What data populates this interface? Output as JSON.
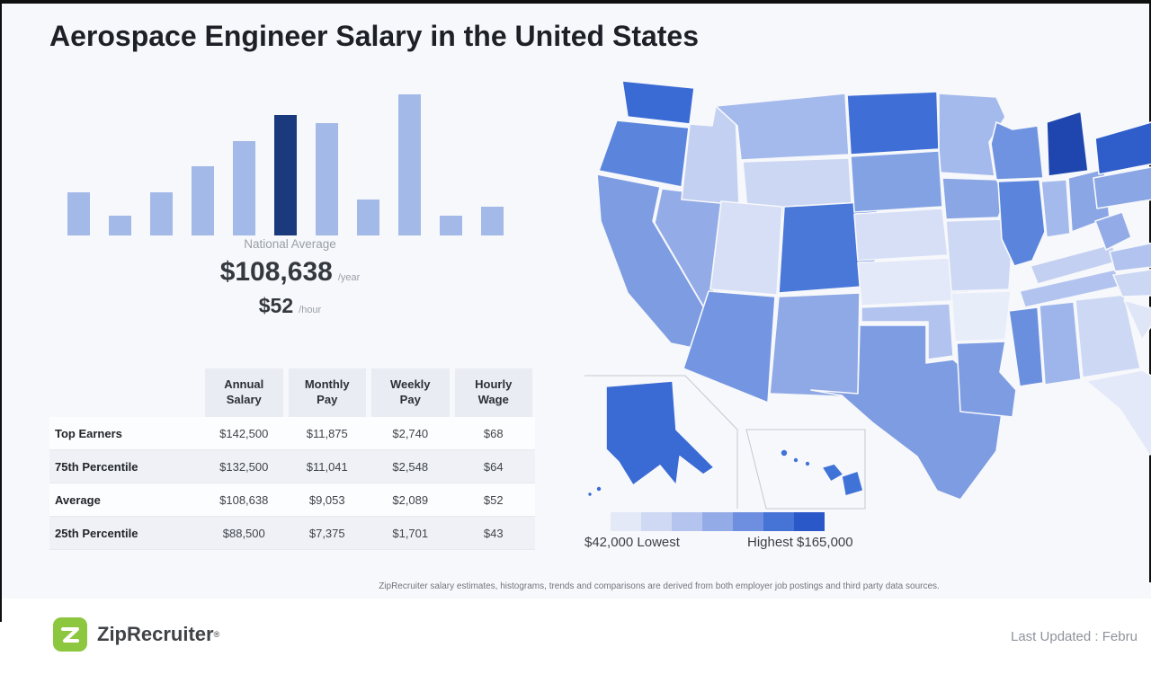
{
  "title": "Aerospace Engineer Salary in the United States",
  "national_average": {
    "label": "National Average",
    "annual_value": "$108,638",
    "annual_unit": "/year",
    "hourly_value": "$52",
    "hourly_unit": "/hour"
  },
  "salary_table": {
    "column_headers": [
      "Annual Salary",
      "Monthly Pay",
      "Weekly Pay",
      "Hourly Wage"
    ],
    "rows": [
      {
        "label": "Top Earners",
        "values": [
          "$142,500",
          "$11,875",
          "$2,740",
          "$68"
        ]
      },
      {
        "label": "75th Percentile",
        "values": [
          "$132,500",
          "$11,041",
          "$2,548",
          "$64"
        ]
      },
      {
        "label": "Average",
        "values": [
          "$108,638",
          "$9,053",
          "$2,089",
          "$52"
        ]
      },
      {
        "label": "25th Percentile",
        "values": [
          "$88,500",
          "$7,375",
          "$1,701",
          "$43"
        ]
      }
    ]
  },
  "map": {
    "legend": {
      "lowest_label": "$42,000 Lowest",
      "highest_label": "Highest $165,000",
      "colors": [
        "#e3e9f7",
        "#cfd9f3",
        "#b4c4ee",
        "#93abe7",
        "#6e8fdf",
        "#4673d6",
        "#2a58c8"
      ]
    },
    "states": [
      {
        "id": "WA",
        "color": "#3a6ad4"
      },
      {
        "id": "OR",
        "color": "#5b85dd"
      },
      {
        "id": "CA",
        "color": "#7d9ce2"
      },
      {
        "id": "NV",
        "color": "#93ace7"
      },
      {
        "id": "ID",
        "color": "#c3d0f1"
      },
      {
        "id": "MT",
        "color": "#a4b9ec"
      },
      {
        "id": "WY",
        "color": "#ccd7f3"
      },
      {
        "id": "UT",
        "color": "#d7dff6"
      },
      {
        "id": "CO",
        "color": "#4a78d8"
      },
      {
        "id": "AZ",
        "color": "#7495e1"
      },
      {
        "id": "NM",
        "color": "#8fa9e6"
      },
      {
        "id": "ND",
        "color": "#3f6ed6"
      },
      {
        "id": "SD",
        "color": "#82a2e4"
      },
      {
        "id": "NE",
        "color": "#d7dff6"
      },
      {
        "id": "KS",
        "color": "#e3e9f8"
      },
      {
        "id": "OK",
        "color": "#b1c3ee"
      },
      {
        "id": "TX",
        "color": "#7d9ce2"
      },
      {
        "id": "MN",
        "color": "#a4b9ec"
      },
      {
        "id": "IA",
        "color": "#8aa6e5"
      },
      {
        "id": "MO",
        "color": "#cdd8f4"
      },
      {
        "id": "AR",
        "color": "#e8edfa"
      },
      {
        "id": "LA",
        "color": "#7d9ce2"
      },
      {
        "id": "WI",
        "color": "#6f93e0"
      },
      {
        "id": "IL",
        "color": "#5b85dd"
      },
      {
        "id": "MI",
        "color": "#1e46ae"
      },
      {
        "id": "IN",
        "color": "#a4b9ec"
      },
      {
        "id": "OH",
        "color": "#8aa6e5"
      },
      {
        "id": "KY",
        "color": "#c3d0f1"
      },
      {
        "id": "TN",
        "color": "#b1c3ee"
      },
      {
        "id": "MS",
        "color": "#6a8fdf"
      },
      {
        "id": "AL",
        "color": "#9db5ea"
      },
      {
        "id": "GA",
        "color": "#cdd8f4"
      },
      {
        "id": "FL",
        "color": "#e3e9f8"
      },
      {
        "id": "WV",
        "color": "#93ace7"
      },
      {
        "id": "VA",
        "color": "#b1c3ee"
      },
      {
        "id": "NC",
        "color": "#ccd7f3"
      },
      {
        "id": "SC",
        "color": "#dfe6f8"
      },
      {
        "id": "PA",
        "color": "#8aa6e5"
      },
      {
        "id": "NY",
        "color": "#2f5ecb"
      },
      {
        "id": "ME",
        "color": "#5b85dd"
      },
      {
        "id": "AK",
        "color": "#3a6ad4"
      },
      {
        "id": "HI",
        "color": "#4073d8"
      }
    ]
  },
  "disclaimer": "ZipRecruiter salary estimates, histograms, trends and comparisons are derived from both employer job postings and third party data sources.",
  "footer": {
    "brand": "ZipRecruiter",
    "trademark": "®",
    "brand_green": "#8dc63f",
    "last_updated": "Last Updated : Febru"
  },
  "chart_data": [
    {
      "type": "bar",
      "title": "Aerospace Engineer salary distribution histogram (axes unlabeled)",
      "values": [
        48,
        22,
        48,
        77,
        105,
        134,
        125,
        40,
        157,
        22,
        32
      ],
      "value_units": "relative bar height",
      "highlight_index": 5,
      "highlight_label": "National Average",
      "bar_color": "#a3b9e8",
      "highlight_color": "#1b3a7d"
    },
    {
      "type": "heatmap",
      "subtype": "us-choropleth",
      "title": "Aerospace Engineer salary by state",
      "range": {
        "lowest": "$42,000",
        "highest": "$165,000"
      },
      "legend_labels": [
        "$42,000 Lowest",
        "Highest $165,000"
      ]
    },
    {
      "type": "table",
      "columns": [
        "",
        "Annual Salary",
        "Monthly Pay",
        "Weekly Pay",
        "Hourly Wage"
      ],
      "rows": [
        [
          "Top Earners",
          "$142,500",
          "$11,875",
          "$2,740",
          "$68"
        ],
        [
          "75th Percentile",
          "$132,500",
          "$11,041",
          "$2,548",
          "$64"
        ],
        [
          "Average",
          "$108,638",
          "$9,053",
          "$2,089",
          "$52"
        ],
        [
          "25th Percentile",
          "$88,500",
          "$7,375",
          "$1,701",
          "$43"
        ]
      ]
    }
  ]
}
